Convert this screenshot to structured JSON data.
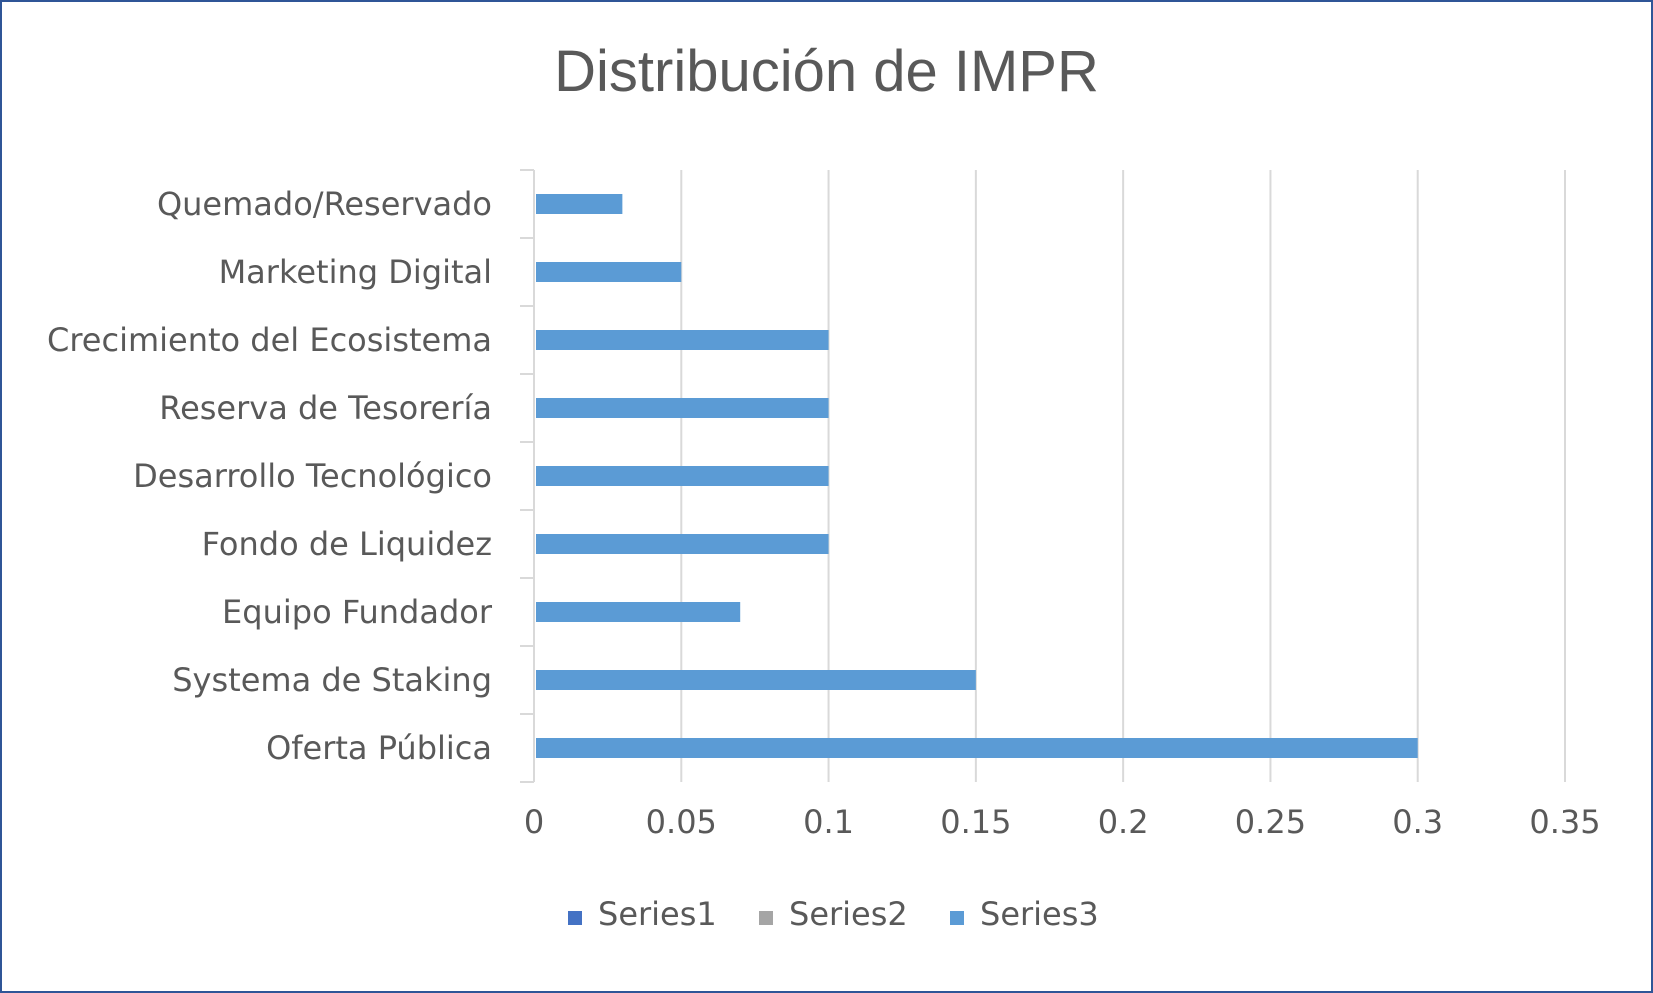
{
  "chart_data": {
    "type": "bar",
    "orientation": "horizontal",
    "title": "Distribución de IMPR",
    "categories": [
      "Oferta Pública",
      "Systema de Staking",
      "Equipo Fundador",
      "Fondo de Liquidez",
      "Desarrollo Tecnológico",
      "Reserva de Tesorería",
      "Crecimiento del Ecosistema",
      "Marketing Digital",
      "Quemado/Reservado"
    ],
    "series": [
      {
        "name": "Series1",
        "color": "#4472c4",
        "values": [
          0,
          0,
          0,
          0,
          0,
          0,
          0,
          0,
          0
        ]
      },
      {
        "name": "Series2",
        "color": "#a5a5a5",
        "values": [
          0,
          0,
          0,
          0,
          0,
          0,
          0,
          0,
          0
        ]
      },
      {
        "name": "Series3",
        "color": "#5b9bd5",
        "values": [
          0.3,
          0.15,
          0.07,
          0.1,
          0.1,
          0.1,
          0.1,
          0.05,
          0.03
        ]
      }
    ],
    "xlim": [
      0,
      0.35
    ],
    "xticks": [
      "0",
      "0.05",
      "0.1",
      "0.15",
      "0.2",
      "0.25",
      "0.3",
      "0.35"
    ],
    "grid": true,
    "legend_position": "bottom"
  }
}
